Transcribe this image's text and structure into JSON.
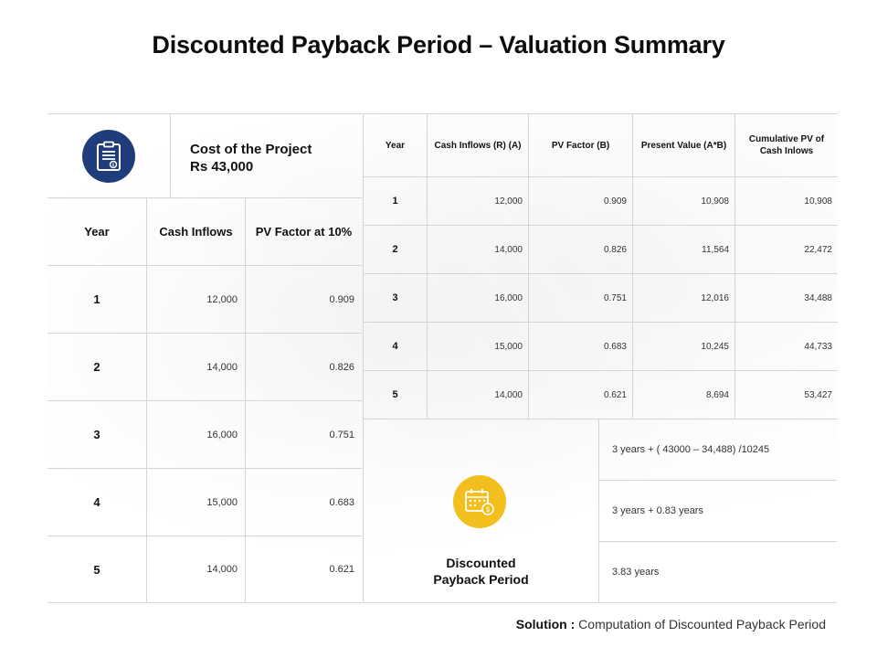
{
  "title": "Discounted Payback Period – Valuation Summary",
  "cost": {
    "label": "Cost of the Project",
    "amount": "Rs 43,000",
    "icon": "clipboard-dollar-icon",
    "icon_color": "#1f3d7a"
  },
  "left_table": {
    "headers": [
      "Year",
      "Cash Inflows",
      "PV Factor at 10%"
    ],
    "rows": [
      {
        "year": "1",
        "inflow": "12,000",
        "factor": "0.909"
      },
      {
        "year": "2",
        "inflow": "14,000",
        "factor": "0.826"
      },
      {
        "year": "3",
        "inflow": "16,000",
        "factor": "0.751"
      },
      {
        "year": "4",
        "inflow": "15,000",
        "factor": "0.683"
      },
      {
        "year": "5",
        "inflow": "14,000",
        "factor": "0.621"
      }
    ]
  },
  "right_table": {
    "headers": [
      "Year",
      "Cash Inflows (R) (A)",
      "PV Factor (B)",
      "Present Value (A*B)",
      "Cumulative PV of Cash Inlows"
    ],
    "rows": [
      {
        "year": "1",
        "inflow": "12,000",
        "factor": "0.909",
        "pv": "10,908",
        "cum": "10,908"
      },
      {
        "year": "2",
        "inflow": "14,000",
        "factor": "0.826",
        "pv": "11,564",
        "cum": "22,472"
      },
      {
        "year": "3",
        "inflow": "16,000",
        "factor": "0.751",
        "pv": "12,016",
        "cum": "34,488"
      },
      {
        "year": "4",
        "inflow": "15,000",
        "factor": "0.683",
        "pv": "10,245",
        "cum": "44,733"
      },
      {
        "year": "5",
        "inflow": "14,000",
        "factor": "0.621",
        "pv": "8,694",
        "cum": "53,427"
      }
    ]
  },
  "result": {
    "label_line1": "Discounted",
    "label_line2": "Payback Period",
    "icon": "calendar-dollar-icon",
    "icon_color": "#f2bf1f",
    "steps": [
      "3 years + ( 43000 – 34,488) /10245",
      "3 years + 0.83 years",
      "3.83 years"
    ]
  },
  "solution": {
    "label": "Solution :",
    "text": "Computation of Discounted Payback Period"
  }
}
